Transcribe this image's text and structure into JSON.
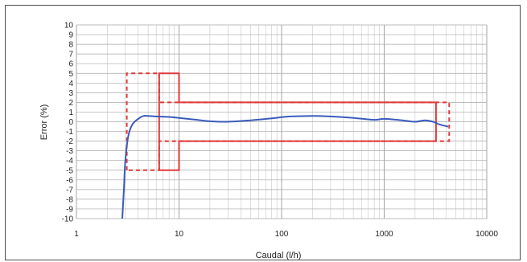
{
  "chart_data": {
    "type": "line",
    "title": "",
    "xlabel": "Caudal (l/h)",
    "ylabel": "Error (%)",
    "xscale": "log",
    "xlim": [
      1,
      10000
    ],
    "ylim": [
      -10,
      10
    ],
    "grid": true,
    "x_ticks": [
      "1",
      "10",
      "100",
      "1000",
      "10000"
    ],
    "y_ticks": [
      "10",
      "9",
      "8",
      "7",
      "6",
      "5",
      "4",
      "3",
      "2",
      "1",
      "0",
      "-1",
      "-2",
      "-3",
      "-4",
      "-5",
      "-6",
      "-7",
      "-8",
      "-9",
      "-10"
    ],
    "colors": {
      "curve": "#3a5bbd",
      "limits": "#e03a3a",
      "grid": "#c8c8c8"
    },
    "series": [
      {
        "style": "solid",
        "x": [
          2.8,
          2.9,
          3.0,
          3.2,
          3.5,
          4.0,
          4.5,
          5.0,
          6.0,
          8.0,
          10,
          15,
          20,
          30,
          50,
          80,
          120,
          200,
          300,
          500,
          800,
          1000,
          1500,
          2000,
          2500,
          3000,
          3500,
          4200
        ],
        "y": [
          -10,
          -7,
          -4,
          -1.5,
          -0.3,
          0.3,
          0.6,
          0.6,
          0.55,
          0.5,
          0.4,
          0.2,
          0.05,
          0.0,
          0.15,
          0.35,
          0.55,
          0.6,
          0.55,
          0.4,
          0.2,
          0.3,
          0.15,
          0.0,
          0.15,
          0.0,
          -0.3,
          -0.5
        ]
      }
    ],
    "limit_envelopes": [
      {
        "style": "solid",
        "x": [
          6.4,
          6.4,
          10,
          10,
          3200,
          3200,
          10,
          10,
          6.4
        ],
        "y": [
          -5,
          5,
          5,
          2,
          2,
          -2,
          -2,
          -5,
          -5
        ]
      },
      {
        "style": "dashed",
        "x": [
          3.1,
          3.1,
          6.4,
          6.4,
          4300,
          4300,
          6.4,
          6.4,
          3.1
        ],
        "y": [
          -5,
          5,
          5,
          2,
          2,
          -2,
          -2,
          -5,
          -5
        ]
      }
    ]
  }
}
